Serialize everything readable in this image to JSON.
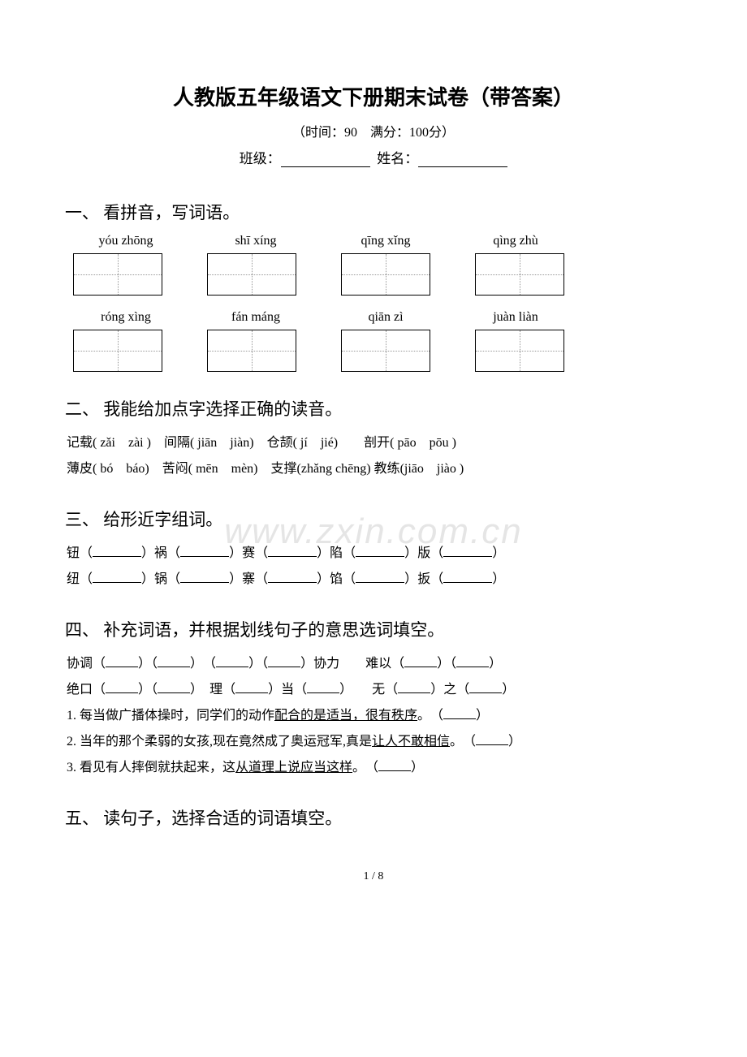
{
  "title": "人教版五年级语文下册期末试卷（带答案）",
  "subtitle": "（时间：90　满分：100分）",
  "class_label": "班级：",
  "name_label": "姓名：",
  "watermark": "www.zxin.com.cn",
  "page_num": "1 / 8",
  "section1": {
    "heading": "一、 看拼音，写词语。",
    "pinyin_row1": [
      "yóu zhōng",
      "shī xíng",
      "qīng xǐng",
      "qìng zhù"
    ],
    "pinyin_row2": [
      "róng xìng",
      "fán máng",
      "qiān zì",
      "juàn liàn"
    ]
  },
  "section2": {
    "heading": "二、 我能给加点字选择正确的读音。",
    "line1": "记载( zǎi　zài )　间隔( jiān　jiàn)　仓颉( jí　jié)　　剖开( pāo　pōu )",
    "line2": "薄皮( bó　báo)　苦闷( mēn　mèn)　支撑(zhǎng chēng) 教练(jiāo　jiào )"
  },
  "section3": {
    "heading": "三、 给形近字组词。",
    "row1": [
      {
        "char": "钮",
        "suffix": "祸",
        "suffix2": "赛",
        "suffix3": "陷",
        "suffix4": "版"
      }
    ],
    "line1_chars": [
      "钮",
      "祸",
      "赛",
      "陷",
      "版"
    ],
    "line2_chars": [
      "纽",
      "锅",
      "寨",
      "馅",
      "扳"
    ]
  },
  "section4": {
    "heading": "四、 补充词语，并根据划线句子的意思选词填空。",
    "row1_parts": [
      "协调",
      "协力　　难以"
    ],
    "row2_parts": [
      "绝口",
      "理",
      "当",
      "无",
      "之"
    ],
    "q1_prefix": "1. 每当做广播体操时，同学们的动作",
    "q1_underline": "配合的是适当，很有秩序",
    "q1_suffix": "。　（",
    "q2_prefix": "2. 当年的那个柔弱的女孩,现在竟然成了奥运冠军,真是",
    "q2_underline": "让人不敢相信",
    "q2_suffix": "。　（",
    "q3_prefix": "3. 看见有人摔倒就扶起来，这",
    "q3_underline": "从道理上说应当这样",
    "q3_suffix": "。　（"
  },
  "section5": {
    "heading": "五、 读句子，选择合适的词语填空。"
  }
}
